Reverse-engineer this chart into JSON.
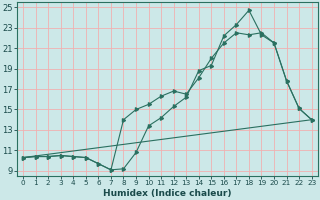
{
  "xlabel": "Humidex (Indice chaleur)",
  "bg_color": "#cce8e8",
  "grid_color": "#f0b0b0",
  "line_color": "#2a7060",
  "xlim": [
    -0.5,
    23.5
  ],
  "ylim": [
    8.5,
    25.5
  ],
  "xticks": [
    0,
    1,
    2,
    3,
    4,
    5,
    6,
    7,
    8,
    9,
    10,
    11,
    12,
    13,
    14,
    15,
    16,
    17,
    18,
    19,
    20,
    21,
    22,
    23
  ],
  "yticks": [
    9,
    11,
    13,
    15,
    17,
    19,
    21,
    23,
    25
  ],
  "line1_x": [
    0,
    1,
    2,
    3,
    4,
    5,
    6,
    7,
    8,
    9,
    10,
    11,
    12,
    13,
    14,
    15,
    16,
    17,
    18,
    19,
    20,
    21,
    22,
    23
  ],
  "line1_y": [
    10.3,
    10.4,
    10.4,
    10.5,
    10.4,
    10.3,
    9.7,
    9.1,
    9.2,
    10.8,
    13.4,
    14.2,
    15.3,
    16.2,
    18.8,
    19.3,
    22.2,
    23.3,
    24.7,
    22.3,
    21.5,
    17.8,
    15.1,
    14.0
  ],
  "line2_x": [
    0,
    1,
    2,
    3,
    4,
    5,
    6,
    7,
    8,
    9,
    10,
    11,
    12,
    13,
    14,
    15,
    16,
    17,
    18,
    19,
    20,
    21,
    22,
    23
  ],
  "line2_y": [
    10.3,
    10.4,
    10.4,
    10.5,
    10.4,
    10.3,
    9.7,
    9.1,
    14.0,
    15.0,
    15.5,
    16.3,
    16.8,
    16.5,
    18.1,
    20.0,
    21.5,
    22.5,
    22.3,
    22.5,
    21.5,
    17.8,
    15.1,
    14.0
  ],
  "line3_x": [
    0,
    23
  ],
  "line3_y": [
    10.3,
    14.0
  ]
}
